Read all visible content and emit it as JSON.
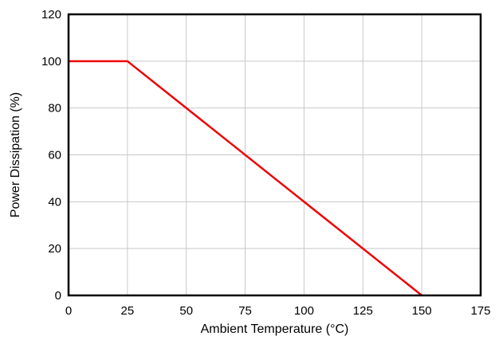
{
  "chart_data": {
    "type": "line",
    "xlabel": "Ambient Temperature (°C)",
    "ylabel": "Power Dissipation (%)",
    "xlim": [
      0,
      175
    ],
    "ylim": [
      0,
      120
    ],
    "xticks": [
      "0",
      "25",
      "50",
      "75",
      "100",
      "125",
      "150",
      "175"
    ],
    "yticks": [
      "0",
      "20",
      "40",
      "60",
      "80",
      "100",
      "120"
    ],
    "grid": true,
    "series": [
      {
        "color": "#ee0000",
        "x": [
          0,
          25,
          150
        ],
        "y": [
          100,
          100,
          0
        ]
      }
    ]
  }
}
